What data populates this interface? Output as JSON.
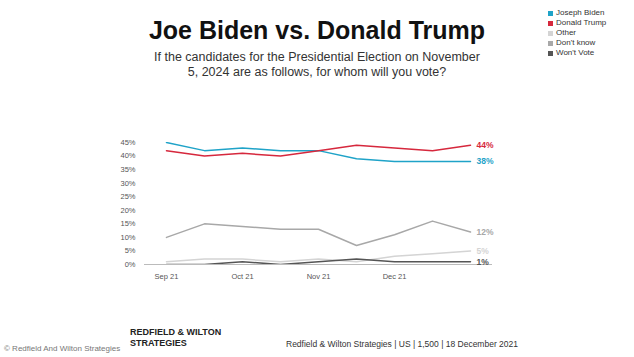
{
  "chart_data": {
    "type": "line",
    "title": "Joe Biden vs. Donald Trump",
    "subtitle": "If the candidates for the Presidential Election on November 5, 2024 are as follows, for whom will you vote?",
    "categories": [
      "Sep 21",
      null,
      "Oct 21",
      null,
      "Nov 21",
      null,
      "Dec 21",
      null,
      null
    ],
    "series": [
      {
        "name": "Joseph Biden",
        "color": "#1fa3c8",
        "values": [
          45,
          42,
          43,
          42,
          42,
          39,
          38,
          38,
          38
        ],
        "value_labels": [
          null,
          null,
          null,
          null,
          null,
          null,
          null,
          null,
          "38%"
        ]
      },
      {
        "name": "Donald Trump",
        "color": "#d6283d",
        "values": [
          42,
          40,
          41,
          40,
          42,
          44,
          43,
          42,
          44
        ],
        "value_labels": [
          null,
          null,
          null,
          null,
          null,
          null,
          null,
          null,
          "44%"
        ]
      },
      {
        "name": "Other",
        "color": "#d4d4d4",
        "values": [
          1,
          2,
          2,
          1,
          2,
          1,
          3,
          4,
          5
        ],
        "value_labels": [
          null,
          null,
          null,
          null,
          null,
          null,
          null,
          null,
          "5%"
        ]
      },
      {
        "name": "Don't know",
        "color": "#a8a8a8",
        "values": [
          10,
          15,
          14,
          13,
          13,
          7,
          11,
          16,
          12
        ],
        "value_labels": [
          null,
          null,
          null,
          null,
          null,
          null,
          null,
          null,
          "12%"
        ]
      },
      {
        "name": "Won't Vote",
        "color": "#555555",
        "values": [
          0,
          0,
          1,
          0,
          1,
          2,
          1,
          1,
          1
        ],
        "value_labels": [
          null,
          null,
          null,
          null,
          null,
          null,
          null,
          null,
          "1%"
        ]
      }
    ],
    "ylim": [
      0,
      45
    ],
    "yticks": [
      {
        "value": 0,
        "label": "0%"
      },
      {
        "value": 5,
        "label": "5%"
      },
      {
        "value": 10,
        "label": "10%"
      },
      {
        "value": 15,
        "label": "15%"
      },
      {
        "value": 20,
        "label": "20%"
      },
      {
        "value": 25,
        "label": "25%"
      },
      {
        "value": 30,
        "label": "30%"
      },
      {
        "value": 35,
        "label": "35%"
      },
      {
        "value": 40,
        "label": "40%"
      },
      {
        "value": 45,
        "label": "45%"
      }
    ],
    "grid": false,
    "legend": "top-right",
    "annotations": [
      "REDFIELD & WILTON STRATEGIES",
      "Redfield & Wilton Strategies | US | 1,500 | 18 December 2021",
      "© Redfield And Wilton Strategies"
    ]
  }
}
